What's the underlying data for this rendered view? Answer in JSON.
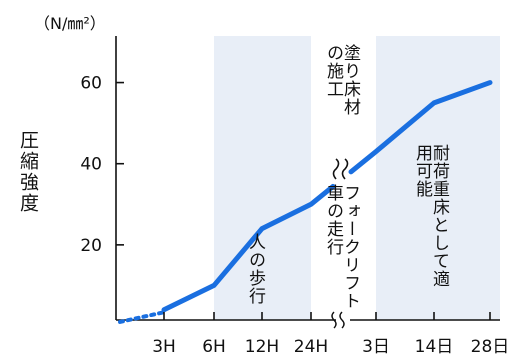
{
  "chart_data": {
    "type": "line",
    "title": "",
    "ylabel": "圧縮強度",
    "yunit": "（N/㎜²）",
    "xlabel": "",
    "ylim": [
      0,
      70
    ],
    "yticks": [
      20,
      40,
      60
    ],
    "categories": [
      "3H",
      "6H",
      "12H",
      "24H",
      "3日",
      "14日",
      "28日"
    ],
    "axis_break": "24H-3日",
    "series": [
      {
        "name": "",
        "x": [
          "3H",
          "6H",
          "12H",
          "24H",
          "3日",
          "14日",
          "28日"
        ],
        "values": [
          4,
          10,
          24,
          30,
          43,
          55,
          60
        ],
        "lead_in_dotted": [
          1,
          3
        ]
      }
    ],
    "bands": [
      {
        "from": "6H",
        "to": "24H",
        "label": "人の歩行"
      },
      {
        "from": "3日",
        "to": "28日",
        "label": "耐荷重床として適用可能"
      }
    ],
    "annotations": [
      {
        "at": "24H-3日",
        "label": "フォークリフト車の走行",
        "region": "below-line"
      },
      {
        "at": "24H-3日",
        "label": "塗り床材の施工",
        "region": "above-line"
      }
    ],
    "colors": {
      "line": "#1a6fe0",
      "band": "#e8eef7",
      "axis": "#111111"
    }
  }
}
